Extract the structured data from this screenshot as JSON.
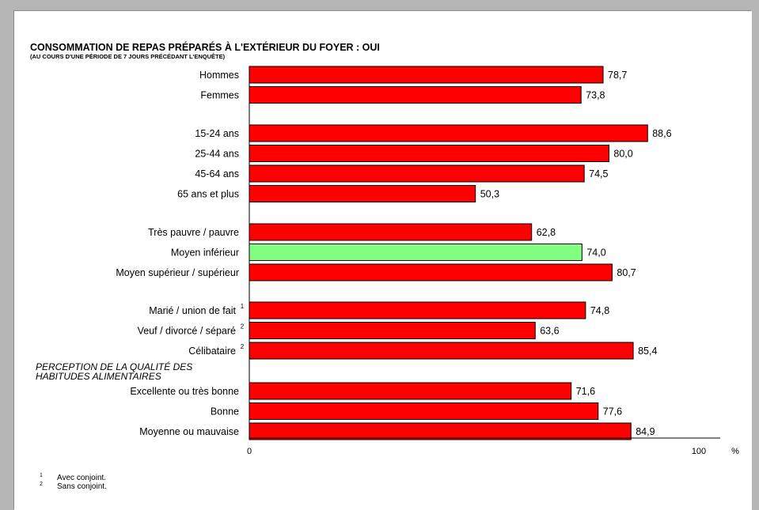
{
  "chart_data": {
    "type": "bar",
    "orientation": "horizontal",
    "title": "CONSOMMATION DE REPAS PRÉPARÉS À L'EXTÉRIEUR DU FOYER : OUI",
    "subtitle": "(AU COURS D'UNE PÉRIODE DE 7 JOURS PRÉCÉDANT L'ENQUÊTE)",
    "xlim": [
      0,
      100
    ],
    "ticks": [
      {
        "value": 0,
        "label": "0"
      },
      {
        "value": 100,
        "label": "100"
      }
    ],
    "unit": "%",
    "bar_color": "#ff0000",
    "highlight_color": "#80ff80",
    "groups": [
      {
        "section_label": "",
        "items": [
          {
            "label": "Hommes",
            "value": 78.7,
            "value_label": "78,7",
            "note": "",
            "highlight": false
          },
          {
            "label": "Femmes",
            "value": 73.8,
            "value_label": "73,8",
            "note": "",
            "highlight": false
          }
        ]
      },
      {
        "section_label": "",
        "items": [
          {
            "label": "15-24 ans",
            "value": 88.6,
            "value_label": "88,6",
            "note": "",
            "highlight": false
          },
          {
            "label": "25-44 ans",
            "value": 80.0,
            "value_label": "80,0",
            "note": "",
            "highlight": false
          },
          {
            "label": "45-64 ans",
            "value": 74.5,
            "value_label": "74,5",
            "note": "",
            "highlight": false
          },
          {
            "label": "65 ans et plus",
            "value": 50.3,
            "value_label": "50,3",
            "note": "",
            "highlight": false
          }
        ]
      },
      {
        "section_label": "",
        "items": [
          {
            "label": "Très pauvre / pauvre",
            "value": 62.8,
            "value_label": "62,8",
            "note": "",
            "highlight": false
          },
          {
            "label": "Moyen inférieur",
            "value": 74.0,
            "value_label": "74,0",
            "note": "",
            "highlight": true
          },
          {
            "label": "Moyen supérieur / supérieur",
            "value": 80.7,
            "value_label": "80,7",
            "note": "",
            "highlight": false
          }
        ]
      },
      {
        "section_label": "",
        "items": [
          {
            "label": "Marié / union de fait",
            "value": 74.8,
            "value_label": "74,8",
            "note": "1",
            "highlight": false
          },
          {
            "label": "Veuf / divorcé / séparé",
            "value": 63.6,
            "value_label": "63,6",
            "note": "2",
            "highlight": false
          },
          {
            "label": "Célibataire",
            "value": 85.4,
            "value_label": "85,4",
            "note": "2",
            "highlight": false
          }
        ]
      },
      {
        "section_label": "PERCEPTION DE LA QUALITÉ DES HABITUDES ALIMENTAIRES",
        "items": [
          {
            "label": "Excellente ou très bonne",
            "value": 71.6,
            "value_label": "71,6",
            "note": "",
            "highlight": false
          },
          {
            "label": "Bonne",
            "value": 77.6,
            "value_label": "77,6",
            "note": "",
            "highlight": false
          },
          {
            "label": "Moyenne ou mauvaise",
            "value": 84.9,
            "value_label": "84,9",
            "note": "",
            "highlight": false
          }
        ]
      }
    ],
    "section_label_lines": [
      "PERCEPTION DE LA QUALITÉ DES",
      "HABITUDES ALIMENTAIRES"
    ]
  },
  "footnotes": [
    {
      "mark": "1",
      "text": "Avec conjoint."
    },
    {
      "mark": "2",
      "text": "Sans conjoint."
    }
  ]
}
